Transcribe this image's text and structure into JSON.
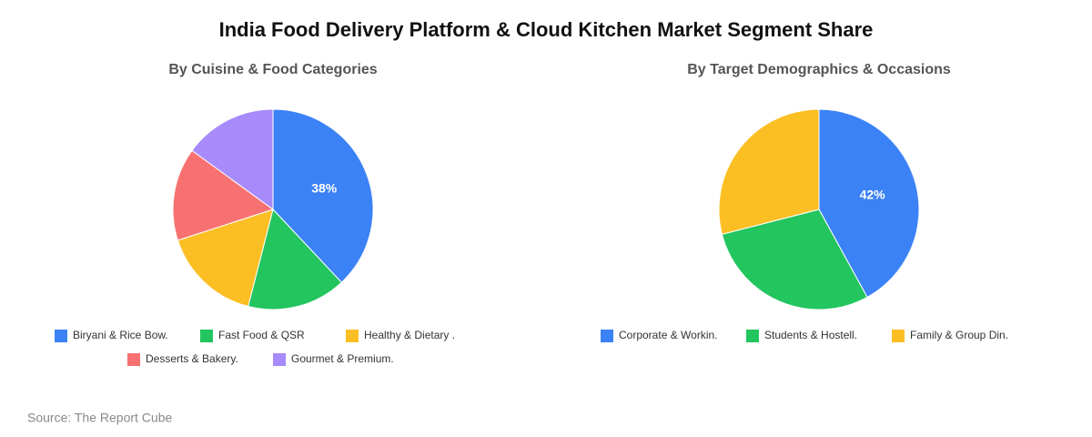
{
  "title": "India Food Delivery Platform & Cloud Kitchen Market Segment Share",
  "source": "Source: The Report Cube",
  "chart_data": [
    {
      "type": "pie",
      "title": "By Cuisine & Food Categories",
      "categories": [
        "Biryani & Rice Bow.",
        "Fast Food & QSR",
        "Healthy & Dietary .",
        "Desserts & Bakery.",
        "Gourmet & Premium."
      ],
      "values": [
        38,
        16,
        16,
        15,
        15
      ],
      "value_labels": [
        "38%",
        null,
        null,
        null,
        null
      ],
      "colors": [
        "#3b82f6",
        "#22c55e",
        "#fbbf24",
        "#f87171",
        "#a78bfa"
      ]
    },
    {
      "type": "pie",
      "title": "By Target Demographics & Occasions",
      "categories": [
        "Corporate & Workin.",
        "Students & Hostell.",
        "Family & Group Din."
      ],
      "values": [
        42,
        29,
        29
      ],
      "value_labels": [
        "42%",
        null,
        null
      ],
      "colors": [
        "#3b82f6",
        "#22c55e",
        "#fbbf24"
      ]
    }
  ]
}
